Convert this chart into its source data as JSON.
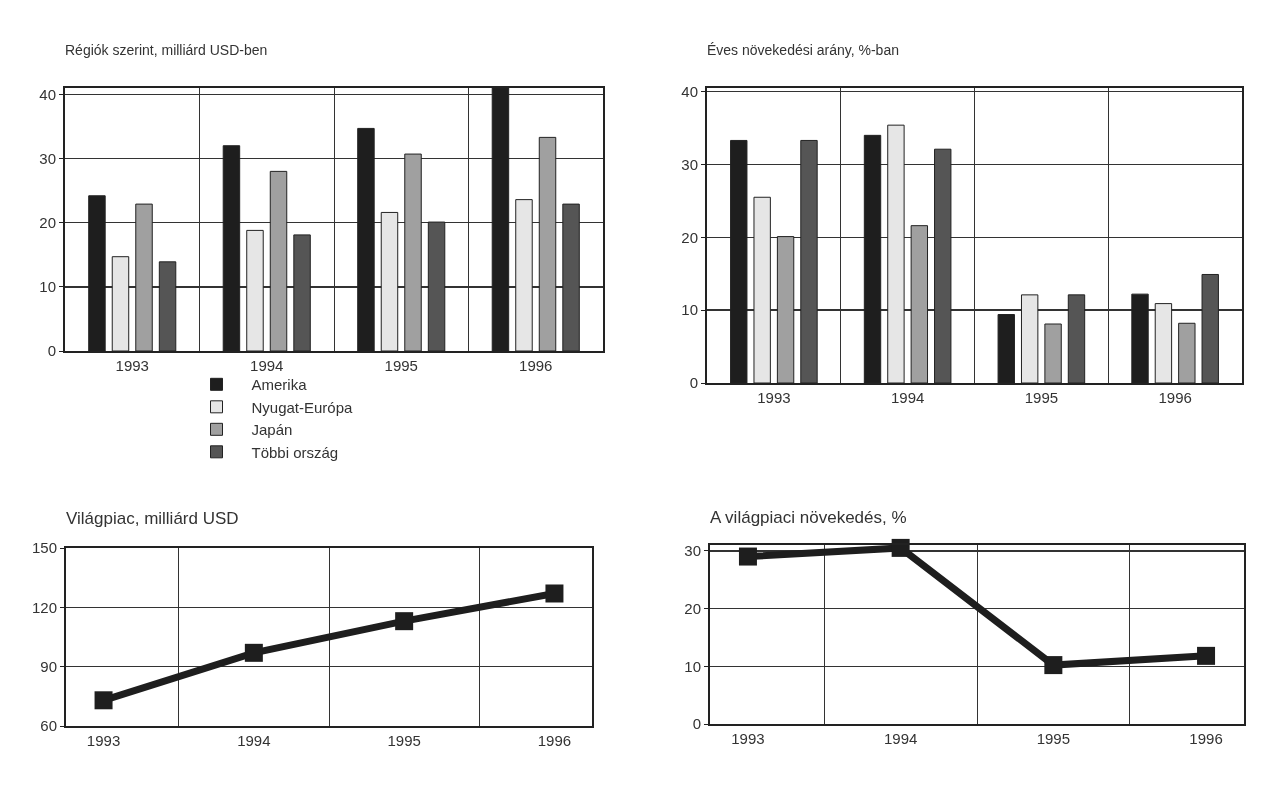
{
  "chart_data": [
    {
      "type": "bar",
      "title": "Régiók szerint, milliárd USD-ben",
      "categories": [
        "1993",
        "1994",
        "1995",
        "1996"
      ],
      "ylim": [
        0,
        41
      ],
      "yticks": [
        0,
        10,
        20,
        30,
        40
      ],
      "grid": true,
      "legend": "bottom",
      "series": [
        {
          "name": "Amerika",
          "color": "#1e1e1e",
          "values": [
            24.2,
            32,
            34.7,
            41
          ]
        },
        {
          "name": "Nyugat-Európa",
          "color": "#e6e6e6",
          "values": [
            14.7,
            18.8,
            21.6,
            23.6
          ]
        },
        {
          "name": "Japán",
          "color": "#a0a0a0",
          "values": [
            22.9,
            28,
            30.7,
            33.3
          ]
        },
        {
          "name": "Többi ország",
          "color": "#555555",
          "values": [
            13.9,
            18.1,
            20.1,
            22.9
          ]
        }
      ]
    },
    {
      "type": "bar",
      "title": "Éves növekedési arány, %-ban",
      "categories": [
        "1993",
        "1994",
        "1995",
        "1996"
      ],
      "ylim": [
        0,
        40.5
      ],
      "yticks": [
        0,
        10,
        20,
        30,
        40
      ],
      "grid": true,
      "series": [
        {
          "color": "#1e1e1e",
          "values": [
            33.3,
            34,
            9.4,
            12.2
          ]
        },
        {
          "color": "#e6e6e6",
          "values": [
            25.5,
            35.4,
            12.1,
            10.9
          ]
        },
        {
          "color": "#a0a0a0",
          "values": [
            20.1,
            21.6,
            8.1,
            8.2
          ]
        },
        {
          "color": "#555555",
          "values": [
            33.3,
            32.1,
            12.1,
            14.9
          ]
        }
      ]
    },
    {
      "type": "line",
      "title": "Világpiac, milliárd USD",
      "categories": [
        "1993",
        "1994",
        "1995",
        "1996"
      ],
      "ylim": [
        60,
        150
      ],
      "yticks": [
        60,
        90,
        120,
        150
      ],
      "grid": true,
      "marker": "square",
      "line_style": "solid",
      "series": [
        {
          "color": "#1e1e1e",
          "values": [
            73,
            97,
            113,
            127
          ]
        }
      ]
    },
    {
      "type": "line",
      "title": "A világpiaci növekedés, %",
      "categories": [
        "1993",
        "1994",
        "1995",
        "1996"
      ],
      "ylim": [
        0,
        31
      ],
      "yticks": [
        0,
        10,
        20,
        30
      ],
      "grid": true,
      "marker": "square",
      "line_style": "solid",
      "series": [
        {
          "color": "#1e1e1e",
          "values": [
            29,
            30.5,
            10.2,
            11.8
          ]
        }
      ]
    }
  ]
}
